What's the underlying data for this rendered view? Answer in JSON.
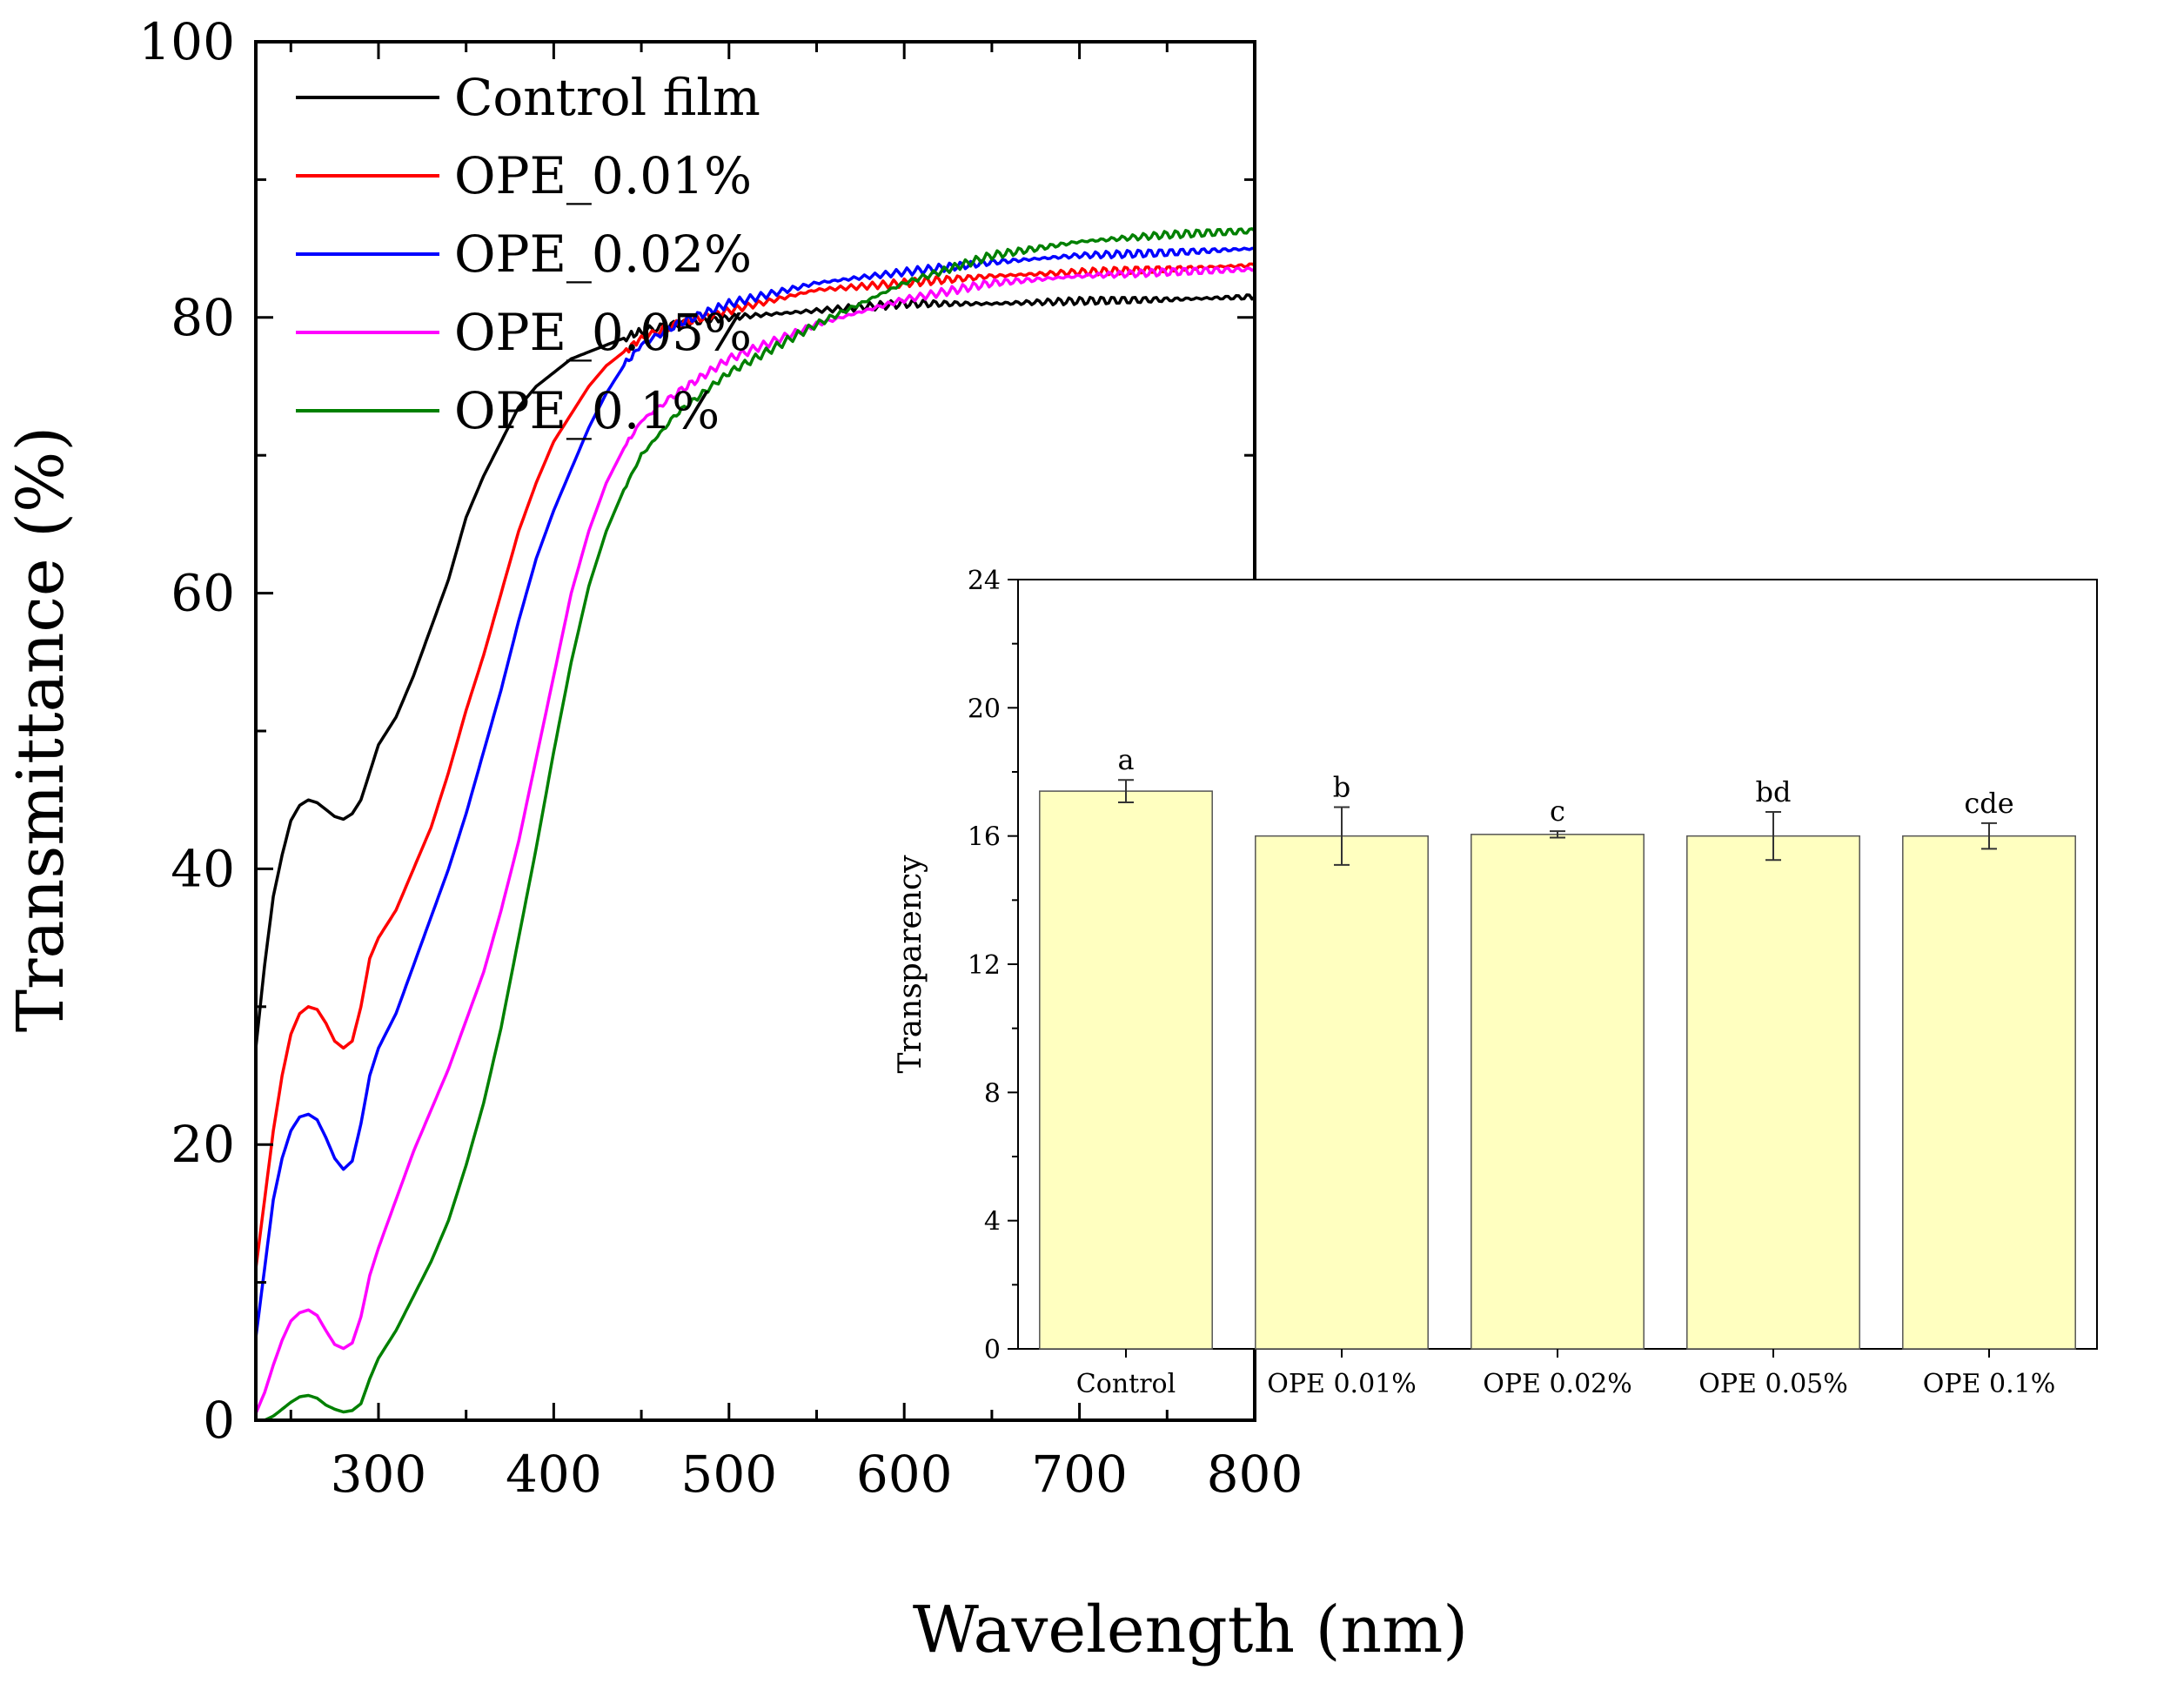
{
  "chart_data": [
    {
      "type": "line",
      "title": "",
      "xlabel": "Wavelength (nm)",
      "ylabel": "Transmittance (%)",
      "xlim": [
        230,
        800
      ],
      "ylim": [
        0,
        100
      ],
      "xticks": [
        300,
        400,
        500,
        600,
        700,
        800
      ],
      "yticks": [
        0,
        20,
        40,
        60,
        80,
        100
      ],
      "legend_position": "top-left",
      "series": [
        {
          "name": "Control film",
          "color": "#000000",
          "points": [
            [
              230,
              27
            ],
            [
              235,
              33
            ],
            [
              240,
              38
            ],
            [
              245,
              41
            ],
            [
              250,
              43.5
            ],
            [
              255,
              44.6
            ],
            [
              260,
              45
            ],
            [
              265,
              44.8
            ],
            [
              270,
              44.3
            ],
            [
              275,
              43.8
            ],
            [
              280,
              43.6
            ],
            [
              285,
              44
            ],
            [
              290,
              45
            ],
            [
              295,
              47
            ],
            [
              300,
              49
            ],
            [
              310,
              51
            ],
            [
              320,
              54
            ],
            [
              330,
              57.5
            ],
            [
              340,
              61
            ],
            [
              350,
              65.5
            ],
            [
              360,
              68.5
            ],
            [
              370,
              71
            ],
            [
              380,
              73.5
            ],
            [
              390,
              75
            ],
            [
              400,
              76
            ],
            [
              410,
              77
            ],
            [
              420,
              77.5
            ],
            [
              430,
              78
            ],
            [
              440,
              78.5
            ],
            [
              450,
              79
            ],
            [
              470,
              79.5
            ],
            [
              500,
              80
            ],
            [
              550,
              80.5
            ],
            [
              600,
              81
            ],
            [
              650,
              81
            ],
            [
              700,
              81.2
            ],
            [
              750,
              81.3
            ],
            [
              800,
              81.5
            ]
          ]
        },
        {
          "name": "OPE_0.01%",
          "color": "#ff0000",
          "points": [
            [
              230,
              11
            ],
            [
              235,
              16
            ],
            [
              240,
              21
            ],
            [
              245,
              25
            ],
            [
              250,
              28
            ],
            [
              255,
              29.5
            ],
            [
              260,
              30
            ],
            [
              265,
              29.8
            ],
            [
              270,
              28.8
            ],
            [
              275,
              27.5
            ],
            [
              280,
              27
            ],
            [
              285,
              27.5
            ],
            [
              290,
              30
            ],
            [
              295,
              33.5
            ],
            [
              300,
              35
            ],
            [
              310,
              37
            ],
            [
              320,
              40
            ],
            [
              330,
              43
            ],
            [
              340,
              47
            ],
            [
              350,
              51.5
            ],
            [
              360,
              55.5
            ],
            [
              370,
              60
            ],
            [
              380,
              64.5
            ],
            [
              390,
              68
            ],
            [
              400,
              71
            ],
            [
              410,
              73
            ],
            [
              420,
              75
            ],
            [
              430,
              76.5
            ],
            [
              440,
              77.5
            ],
            [
              450,
              78.5
            ],
            [
              470,
              79.5
            ],
            [
              500,
              80.5
            ],
            [
              550,
              82
            ],
            [
              600,
              82.5
            ],
            [
              650,
              83
            ],
            [
              700,
              83.3
            ],
            [
              750,
              83.5
            ],
            [
              800,
              83.8
            ]
          ]
        },
        {
          "name": "OPE_0.02%",
          "color": "#0000ff",
          "points": [
            [
              230,
              6
            ],
            [
              235,
              11
            ],
            [
              240,
              16
            ],
            [
              245,
              19
            ],
            [
              250,
              21
            ],
            [
              255,
              22
            ],
            [
              260,
              22.2
            ],
            [
              265,
              21.8
            ],
            [
              270,
              20.5
            ],
            [
              275,
              19
            ],
            [
              280,
              18.2
            ],
            [
              285,
              18.8
            ],
            [
              290,
              21.5
            ],
            [
              295,
              25
            ],
            [
              300,
              27
            ],
            [
              310,
              29.5
            ],
            [
              320,
              33
            ],
            [
              330,
              36.5
            ],
            [
              340,
              40
            ],
            [
              350,
              44
            ],
            [
              360,
              48.5
            ],
            [
              370,
              53
            ],
            [
              380,
              58
            ],
            [
              390,
              62.5
            ],
            [
              400,
              66
            ],
            [
              410,
              69
            ],
            [
              420,
              72
            ],
            [
              430,
              74.5
            ],
            [
              440,
              76.5
            ],
            [
              450,
              78
            ],
            [
              470,
              79.5
            ],
            [
              500,
              81
            ],
            [
              550,
              82.5
            ],
            [
              600,
              83.3
            ],
            [
              650,
              84
            ],
            [
              700,
              84.5
            ],
            [
              750,
              84.7
            ],
            [
              800,
              85
            ]
          ]
        },
        {
          "name": "OPE_0.05%",
          "color": "#ff00ff",
          "points": [
            [
              230,
              0.5
            ],
            [
              235,
              2
            ],
            [
              240,
              4
            ],
            [
              245,
              5.8
            ],
            [
              250,
              7.2
            ],
            [
              255,
              7.8
            ],
            [
              260,
              8
            ],
            [
              265,
              7.6
            ],
            [
              270,
              6.5
            ],
            [
              275,
              5.5
            ],
            [
              280,
              5.2
            ],
            [
              285,
              5.6
            ],
            [
              290,
              7.5
            ],
            [
              295,
              10.5
            ],
            [
              300,
              12.5
            ],
            [
              310,
              16
            ],
            [
              320,
              19.5
            ],
            [
              330,
              22.5
            ],
            [
              340,
              25.5
            ],
            [
              350,
              29
            ],
            [
              360,
              32.5
            ],
            [
              370,
              37
            ],
            [
              380,
              42
            ],
            [
              390,
              48
            ],
            [
              400,
              54
            ],
            [
              410,
              60
            ],
            [
              420,
              64.5
            ],
            [
              430,
              68
            ],
            [
              440,
              70.5
            ],
            [
              450,
              72.5
            ],
            [
              470,
              74.5
            ],
            [
              500,
              77
            ],
            [
              550,
              79.5
            ],
            [
              600,
              81.3
            ],
            [
              650,
              82.5
            ],
            [
              700,
              83
            ],
            [
              750,
              83.3
            ],
            [
              800,
              83.5
            ]
          ]
        },
        {
          "name": "OPE_0.1%",
          "color": "#008000",
          "points": [
            [
              230,
              0
            ],
            [
              235,
              0
            ],
            [
              240,
              0.3
            ],
            [
              245,
              0.8
            ],
            [
              250,
              1.3
            ],
            [
              255,
              1.7
            ],
            [
              260,
              1.8
            ],
            [
              265,
              1.6
            ],
            [
              270,
              1.1
            ],
            [
              275,
              0.8
            ],
            [
              280,
              0.6
            ],
            [
              285,
              0.7
            ],
            [
              290,
              1.2
            ],
            [
              295,
              3
            ],
            [
              300,
              4.5
            ],
            [
              310,
              6.5
            ],
            [
              320,
              9
            ],
            [
              330,
              11.5
            ],
            [
              340,
              14.5
            ],
            [
              350,
              18.5
            ],
            [
              360,
              23
            ],
            [
              370,
              28.5
            ],
            [
              380,
              35
            ],
            [
              390,
              41.5
            ],
            [
              400,
              48.5
            ],
            [
              410,
              55
            ],
            [
              420,
              60.5
            ],
            [
              430,
              64.5
            ],
            [
              440,
              67.5
            ],
            [
              450,
              70
            ],
            [
              470,
              73
            ],
            [
              500,
              76
            ],
            [
              550,
              79.5
            ],
            [
              600,
              82.5
            ],
            [
              650,
              84.5
            ],
            [
              700,
              85.5
            ],
            [
              750,
              86
            ],
            [
              800,
              86.3
            ]
          ]
        }
      ]
    },
    {
      "type": "bar",
      "title": "",
      "xlabel": "",
      "ylabel": "Transparency",
      "ylim": [
        0,
        24
      ],
      "yticks": [
        0,
        4,
        8,
        12,
        16,
        20,
        24
      ],
      "bar_color": "#ffffc0",
      "categories": [
        "Control",
        "OPE 0.01%",
        "OPE 0.02%",
        "OPE 0.05%",
        "OPE 0.1%"
      ],
      "values": [
        17.4,
        16.0,
        16.05,
        16.0,
        16.0
      ],
      "errors": [
        0.35,
        0.9,
        0.1,
        0.75,
        0.4
      ],
      "significance_labels": [
        "a",
        "b",
        "c",
        "bd",
        "cde"
      ]
    }
  ]
}
